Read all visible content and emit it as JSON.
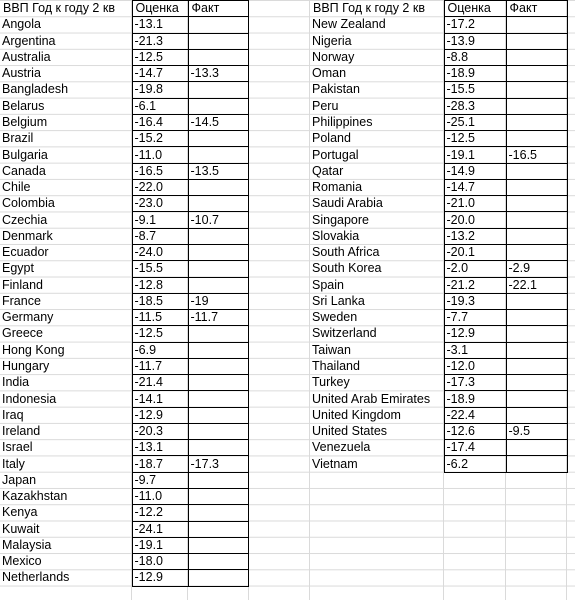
{
  "left": {
    "headers": [
      "ВВП Год к году 2 кв",
      "Оценка",
      "Факт"
    ],
    "rows": [
      [
        "Angola",
        "-13.1",
        ""
      ],
      [
        "Argentina",
        "-21.3",
        ""
      ],
      [
        "Australia",
        "-12.5",
        ""
      ],
      [
        "Austria",
        "-14.7",
        "-13.3"
      ],
      [
        "Bangladesh",
        "-19.8",
        ""
      ],
      [
        "Belarus",
        "-6.1",
        ""
      ],
      [
        "Belgium",
        "-16.4",
        "-14.5"
      ],
      [
        "Brazil",
        "-15.2",
        ""
      ],
      [
        "Bulgaria",
        "-11.0",
        ""
      ],
      [
        "Canada",
        "-16.5",
        "-13.5"
      ],
      [
        "Chile",
        "-22.0",
        ""
      ],
      [
        "Colombia",
        "-23.0",
        ""
      ],
      [
        "Czechia",
        "-9.1",
        "-10.7"
      ],
      [
        "Denmark",
        "-8.7",
        ""
      ],
      [
        "Ecuador",
        "-24.0",
        ""
      ],
      [
        "Egypt",
        "-15.5",
        ""
      ],
      [
        "Finland",
        "-12.8",
        ""
      ],
      [
        "France",
        "-18.5",
        "-19"
      ],
      [
        "Germany",
        "-11.5",
        "-11.7"
      ],
      [
        "Greece",
        "-12.5",
        ""
      ],
      [
        "Hong Kong",
        "-6.9",
        ""
      ],
      [
        "Hungary",
        "-11.7",
        ""
      ],
      [
        "India",
        "-21.4",
        ""
      ],
      [
        "Indonesia",
        "-14.1",
        ""
      ],
      [
        "Iraq",
        "-12.9",
        ""
      ],
      [
        "Ireland",
        "-20.3",
        ""
      ],
      [
        "Israel",
        "-13.1",
        ""
      ],
      [
        "Italy",
        "-18.7",
        "-17.3"
      ],
      [
        "Japan",
        "-9.7",
        ""
      ],
      [
        "Kazakhstan",
        "-11.0",
        ""
      ],
      [
        "Kenya",
        "-12.2",
        ""
      ],
      [
        "Kuwait",
        "-24.1",
        ""
      ],
      [
        "Malaysia",
        "-19.1",
        ""
      ],
      [
        "Mexico",
        "-18.0",
        ""
      ],
      [
        "Netherlands",
        "-12.9",
        ""
      ]
    ]
  },
  "right": {
    "headers": [
      "ВВП Год к году 2 кв",
      "Оценка",
      "Факт"
    ],
    "rows": [
      [
        "New Zealand",
        "-17.2",
        ""
      ],
      [
        "Nigeria",
        "-13.9",
        ""
      ],
      [
        "Norway",
        "-8.8",
        ""
      ],
      [
        "Oman",
        "-18.9",
        ""
      ],
      [
        "Pakistan",
        "-15.5",
        ""
      ],
      [
        "Peru",
        "-28.3",
        ""
      ],
      [
        "Philippines",
        "-25.1",
        ""
      ],
      [
        "Poland",
        "-12.5",
        ""
      ],
      [
        "Portugal",
        "-19.1",
        "-16.5"
      ],
      [
        "Qatar",
        "-14.9",
        ""
      ],
      [
        "Romania",
        "-14.7",
        ""
      ],
      [
        "Saudi Arabia",
        "-21.0",
        ""
      ],
      [
        "Singapore",
        "-20.0",
        ""
      ],
      [
        "Slovakia",
        "-13.2",
        ""
      ],
      [
        "South Africa",
        "-20.1",
        ""
      ],
      [
        "South Korea",
        "-2.0",
        "-2.9"
      ],
      [
        "Spain",
        "-21.2",
        "-22.1"
      ],
      [
        "Sri Lanka",
        "-19.3",
        ""
      ],
      [
        "Sweden",
        "-7.7",
        ""
      ],
      [
        "Switzerland",
        "-12.9",
        ""
      ],
      [
        "Taiwan",
        "-3.1",
        ""
      ],
      [
        "Thailand",
        "-12.0",
        ""
      ],
      [
        "Turkey",
        "-17.3",
        ""
      ],
      [
        "United Arab Emirates",
        "-18.9",
        ""
      ],
      [
        "United Kingdom",
        "-22.4",
        ""
      ],
      [
        "United States",
        "-12.6",
        "-9.5"
      ],
      [
        "Venezuela",
        "-17.4",
        ""
      ],
      [
        "Vietnam",
        "-6.2",
        ""
      ]
    ]
  }
}
